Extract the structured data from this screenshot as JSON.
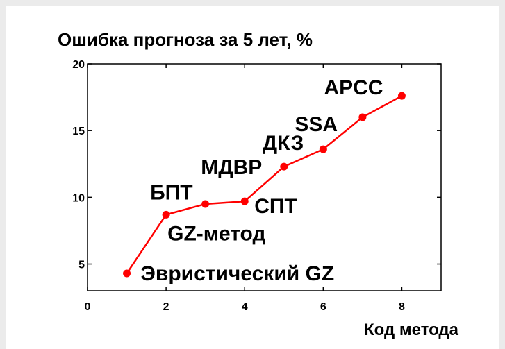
{
  "chart_data": {
    "type": "line",
    "title": "Ошибка прогноза за 5 лет, %",
    "xlabel": "Код метода",
    "ylabel": "",
    "xlim": [
      0,
      9
    ],
    "ylim": [
      3,
      20
    ],
    "x_ticks": [
      0,
      2,
      4,
      6,
      8
    ],
    "y_ticks": [
      5,
      10,
      15,
      20
    ],
    "grid": false,
    "series": [
      {
        "color": "#ff0000",
        "x": [
          1,
          2,
          3,
          4,
          5,
          6,
          7,
          8
        ],
        "y": [
          4.3,
          8.7,
          9.5,
          9.7,
          12.3,
          13.6,
          16.0,
          17.6
        ]
      }
    ],
    "annotations": [
      {
        "text": "Эвристический GZ",
        "x": 1,
        "y": 4.3
      },
      {
        "text": "GZ-метод",
        "x": 2,
        "y": 8.7
      },
      {
        "text": "БПТ",
        "x": 2,
        "y": 8.7
      },
      {
        "text": "СПТ",
        "x": 4,
        "y": 9.7
      },
      {
        "text": "МДВР",
        "x": 4,
        "y": 9.7
      },
      {
        "text": "ДКЗ",
        "x": 5,
        "y": 12.3
      },
      {
        "text": "SSA",
        "x": 6,
        "y": 13.6
      },
      {
        "text": "APCC",
        "x": 8,
        "y": 17.6
      }
    ]
  }
}
